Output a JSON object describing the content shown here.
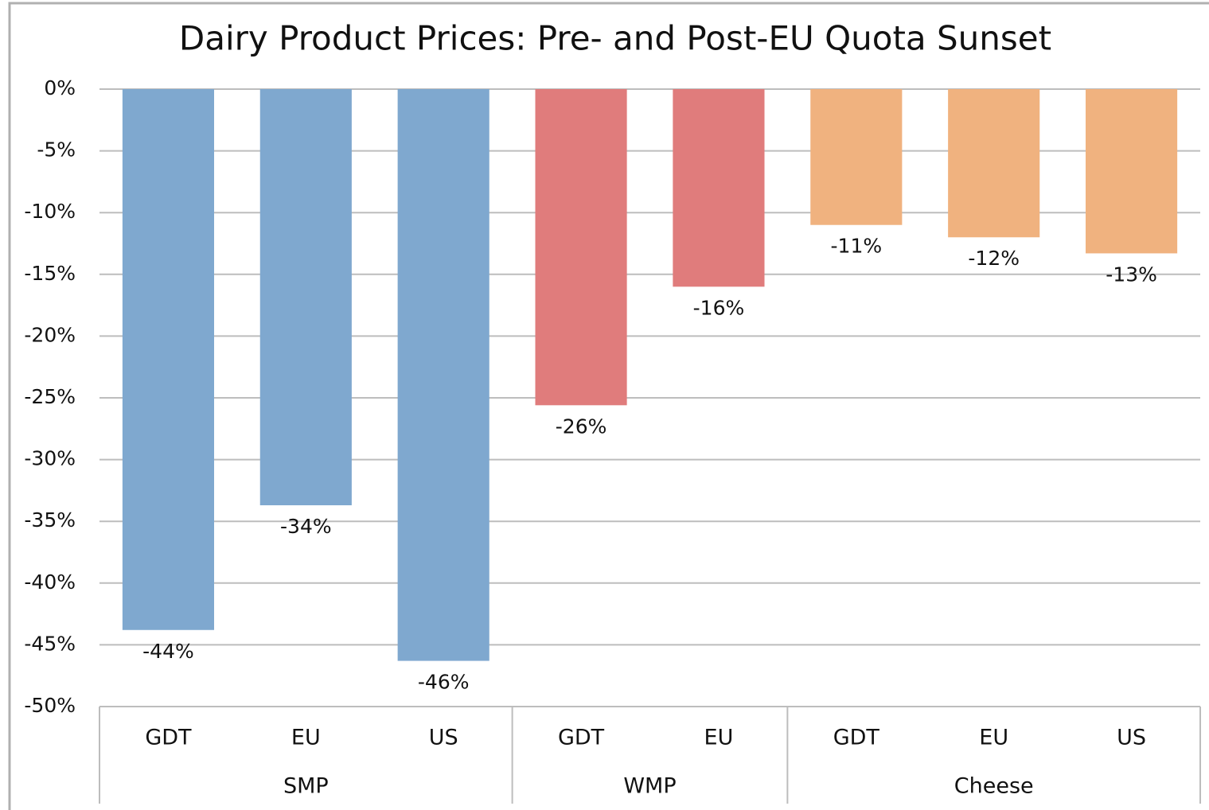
{
  "chart_data": {
    "type": "bar",
    "title": "Dairy Product Prices: Pre- and Post-EU Quota Sunset",
    "groups": [
      {
        "name": "SMP",
        "color": "#7fa8cf",
        "categories": [
          "GDT",
          "EU",
          "US"
        ],
        "values": [
          -43.8,
          -33.7,
          -46.3
        ],
        "value_labels": [
          "-44%",
          "-34%",
          "-46%"
        ]
      },
      {
        "name": "WMP",
        "color": "#e07c7c",
        "categories": [
          "GDT",
          "EU"
        ],
        "values": [
          -25.6,
          -16.0
        ],
        "value_labels": [
          "-26%",
          "-16%"
        ]
      },
      {
        "name": "Cheese",
        "color": "#f0b27f",
        "categories": [
          "GDT",
          "EU",
          "US"
        ],
        "values": [
          -11.0,
          -12.0,
          -13.3
        ],
        "value_labels": [
          "-11%",
          "-12%",
          "-13%"
        ]
      }
    ],
    "ylim": [
      -50,
      0
    ],
    "yticks": [
      {
        "value": 0,
        "label": "0%"
      },
      {
        "value": -5,
        "label": "-5%"
      },
      {
        "value": -10,
        "label": "-10%"
      },
      {
        "value": -15,
        "label": "-15%"
      },
      {
        "value": -20,
        "label": "-20%"
      },
      {
        "value": -25,
        "label": "-25%"
      },
      {
        "value": -30,
        "label": "-30%"
      },
      {
        "value": -35,
        "label": "-35%"
      },
      {
        "value": -40,
        "label": "-40%"
      },
      {
        "value": -45,
        "label": "-45%"
      },
      {
        "value": -50,
        "label": "-50%"
      }
    ],
    "grid": true
  }
}
